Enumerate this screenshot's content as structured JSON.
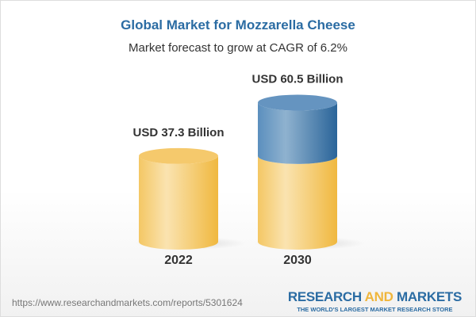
{
  "header": {
    "title": "Global Market for Mozzarella Cheese",
    "subtitle": "Market forecast to grow at CAGR of 6.2%"
  },
  "chart_data": {
    "type": "bar",
    "style": "3d-cylinder",
    "categories": [
      "2022",
      "2030"
    ],
    "values": [
      37.3,
      60.5
    ],
    "data_labels": [
      "USD 37.3 Billion",
      "USD 60.5 Billion"
    ],
    "title": "Global Market for Mozzarella Cheese",
    "subtitle": "Market forecast to grow at CAGR of 6.2%",
    "colors": {
      "base": "#f3c15a",
      "growth": "#3f7bb0"
    },
    "grid": false
  },
  "footer": {
    "url": "https://www.researchandmarkets.com/reports/5301624",
    "logo_part1": "RESEARCH ",
    "logo_part2": "AND",
    "logo_part3": " MARKETS",
    "tagline": "THE WORLD'S LARGEST MARKET RESEARCH STORE"
  }
}
